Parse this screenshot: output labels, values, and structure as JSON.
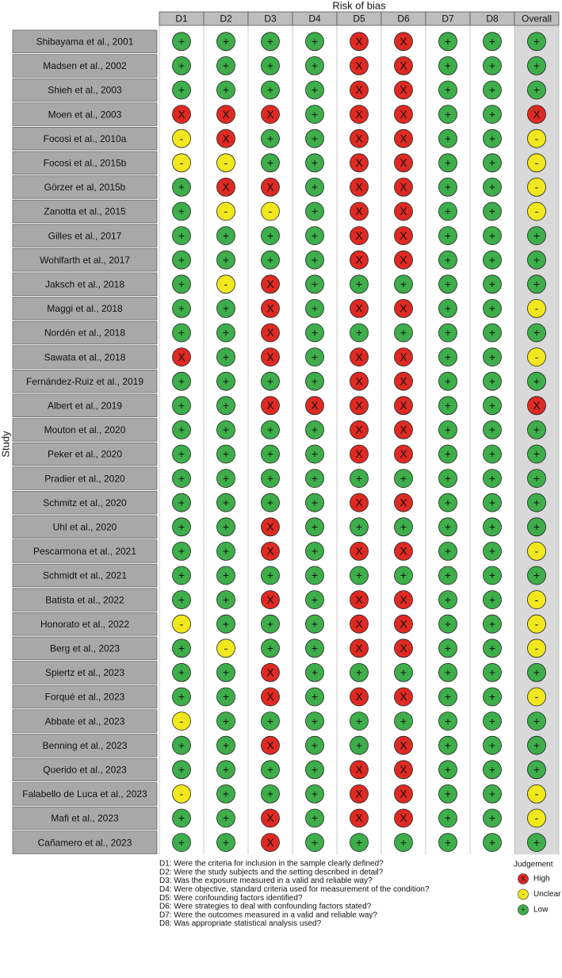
{
  "title": "Risk of bias",
  "y_label": "Study",
  "columns": [
    "D1",
    "D2",
    "D3",
    "D4",
    "D5",
    "D6",
    "D7",
    "D8",
    "Overall"
  ],
  "rows": [
    {
      "study": "Shibayama et al., 2001",
      "judgements": [
        "+",
        "+",
        "+",
        "+",
        "X",
        "X",
        "+",
        "+",
        "+"
      ]
    },
    {
      "study": "Madsen et al., 2002",
      "judgements": [
        "+",
        "+",
        "+",
        "+",
        "X",
        "X",
        "+",
        "+",
        "+"
      ]
    },
    {
      "study": "Shieh et al., 2003",
      "judgements": [
        "+",
        "+",
        "+",
        "+",
        "X",
        "X",
        "+",
        "+",
        "+"
      ]
    },
    {
      "study": "Moen et al., 2003",
      "judgements": [
        "X",
        "X",
        "X",
        "+",
        "X",
        "X",
        "+",
        "+",
        "X"
      ]
    },
    {
      "study": "Focosi et al., 2010a",
      "judgements": [
        "-",
        "X",
        "+",
        "+",
        "X",
        "X",
        "+",
        "+",
        "-"
      ]
    },
    {
      "study": "Focosi et al., 2015b",
      "judgements": [
        "-",
        "-",
        "+",
        "+",
        "X",
        "X",
        "+",
        "+",
        "-"
      ]
    },
    {
      "study": "Görzer et al, 2015b",
      "judgements": [
        "+",
        "X",
        "X",
        "+",
        "X",
        "X",
        "+",
        "+",
        "-"
      ]
    },
    {
      "study": "Zanotta et al., 2015",
      "judgements": [
        "+",
        "-",
        "-",
        "+",
        "X",
        "X",
        "+",
        "+",
        "-"
      ]
    },
    {
      "study": "Gilles et al., 2017",
      "judgements": [
        "+",
        "+",
        "+",
        "+",
        "X",
        "X",
        "+",
        "+",
        "+"
      ]
    },
    {
      "study": "Wohlfarth et al., 2017",
      "judgements": [
        "+",
        "+",
        "+",
        "+",
        "X",
        "X",
        "+",
        "+",
        "+"
      ]
    },
    {
      "study": "Jaksch et al., 2018",
      "judgements": [
        "+",
        "-",
        "X",
        "+",
        "+",
        "+",
        "+",
        "+",
        "+"
      ]
    },
    {
      "study": "Maggi et al., 2018",
      "judgements": [
        "+",
        "+",
        "X",
        "+",
        "X",
        "X",
        "+",
        "+",
        "-"
      ]
    },
    {
      "study": "Nordén et al., 2018",
      "judgements": [
        "+",
        "+",
        "X",
        "+",
        "+",
        "+",
        "+",
        "+",
        "+"
      ]
    },
    {
      "study": "Sawata et al., 2018",
      "judgements": [
        "X",
        "+",
        "X",
        "+",
        "X",
        "X",
        "+",
        "+",
        "-"
      ]
    },
    {
      "study": "Fernández-Ruiz et al., 2019",
      "judgements": [
        "+",
        "+",
        "+",
        "+",
        "X",
        "X",
        "+",
        "+",
        "+"
      ]
    },
    {
      "study": "Albert et al., 2019",
      "judgements": [
        "+",
        "+",
        "X",
        "X",
        "X",
        "X",
        "+",
        "+",
        "X"
      ]
    },
    {
      "study": "Mouton et al., 2020",
      "judgements": [
        "+",
        "+",
        "+",
        "+",
        "X",
        "X",
        "+",
        "+",
        "+"
      ]
    },
    {
      "study": "Peker et al., 2020",
      "judgements": [
        "+",
        "+",
        "+",
        "+",
        "X",
        "X",
        "+",
        "+",
        "+"
      ]
    },
    {
      "study": "Pradier et al., 2020",
      "judgements": [
        "+",
        "+",
        "+",
        "+",
        "+",
        "+",
        "+",
        "+",
        "+"
      ]
    },
    {
      "study": "Schmitz et al., 2020",
      "judgements": [
        "+",
        "+",
        "+",
        "+",
        "X",
        "X",
        "+",
        "+",
        "+"
      ]
    },
    {
      "study": "Uhl et al., 2020",
      "judgements": [
        "+",
        "+",
        "X",
        "+",
        "+",
        "+",
        "+",
        "+",
        "+"
      ]
    },
    {
      "study": "Pescarmona et al., 2021",
      "judgements": [
        "+",
        "+",
        "X",
        "+",
        "X",
        "X",
        "+",
        "+",
        "-"
      ]
    },
    {
      "study": "Schmidt et al., 2021",
      "judgements": [
        "+",
        "+",
        "+",
        "+",
        "+",
        "+",
        "+",
        "+",
        "+"
      ]
    },
    {
      "study": "Batista et al., 2022",
      "judgements": [
        "+",
        "+",
        "X",
        "+",
        "X",
        "X",
        "+",
        "+",
        "-"
      ]
    },
    {
      "study": "Honorato et al., 2022",
      "judgements": [
        "-",
        "+",
        "+",
        "+",
        "X",
        "X",
        "+",
        "+",
        "-"
      ]
    },
    {
      "study": "Berg et al., 2023",
      "judgements": [
        "+",
        "-",
        "+",
        "+",
        "X",
        "X",
        "+",
        "+",
        "-"
      ]
    },
    {
      "study": "Spiertz et al., 2023",
      "judgements": [
        "+",
        "+",
        "X",
        "+",
        "+",
        "+",
        "+",
        "+",
        "+"
      ]
    },
    {
      "study": "Forqué et al., 2023",
      "judgements": [
        "+",
        "+",
        "X",
        "+",
        "X",
        "X",
        "+",
        "+",
        "-"
      ]
    },
    {
      "study": "Abbate et al., 2023",
      "judgements": [
        "-",
        "+",
        "+",
        "+",
        "+",
        "+",
        "+",
        "+",
        "+"
      ]
    },
    {
      "study": "Benning et al., 2023",
      "judgements": [
        "+",
        "+",
        "X",
        "+",
        "+",
        "X",
        "+",
        "+",
        "+"
      ]
    },
    {
      "study": "Querido et al., 2023",
      "judgements": [
        "+",
        "+",
        "+",
        "+",
        "X",
        "X",
        "+",
        "+",
        "+"
      ]
    },
    {
      "study": "Falabello de Luca  et al., 2023",
      "judgements": [
        "-",
        "+",
        "+",
        "+",
        "X",
        "X",
        "+",
        "+",
        "-"
      ]
    },
    {
      "study": "Mafi et al., 2023",
      "judgements": [
        "+",
        "+",
        "X",
        "+",
        "X",
        "X",
        "+",
        "+",
        "-"
      ]
    },
    {
      "study": "Cañamero et al., 2023",
      "judgements": [
        "+",
        "+",
        "X",
        "+",
        "+",
        "+",
        "+",
        "+",
        "+"
      ]
    }
  ],
  "footnotes": [
    "D1: Were the criteria for inclusion in the sample clearly defined?",
    "D2: Were the study subjects and the setting described in detail?",
    "D3: Was the exposure measured in a valid and reliable way?",
    "D4: Were objective, standard criteria used for measurement of the condition?",
    "D5: Were confounding factors identified?",
    "D6: Were strategies to deal with confounding factors stated?",
    "D7: Were the outcomes measured in a valid and reliable way?",
    "D8: Was appropriate statistical analysis used?"
  ],
  "legend": {
    "title": "Judgement",
    "items": [
      {
        "symbol": "X",
        "label": "High",
        "color": "#de2a22"
      },
      {
        "symbol": "-",
        "label": "Unclear",
        "color": "#f0e81c"
      },
      {
        "symbol": "+",
        "label": "Low",
        "color": "#3eae4b"
      }
    ]
  }
}
